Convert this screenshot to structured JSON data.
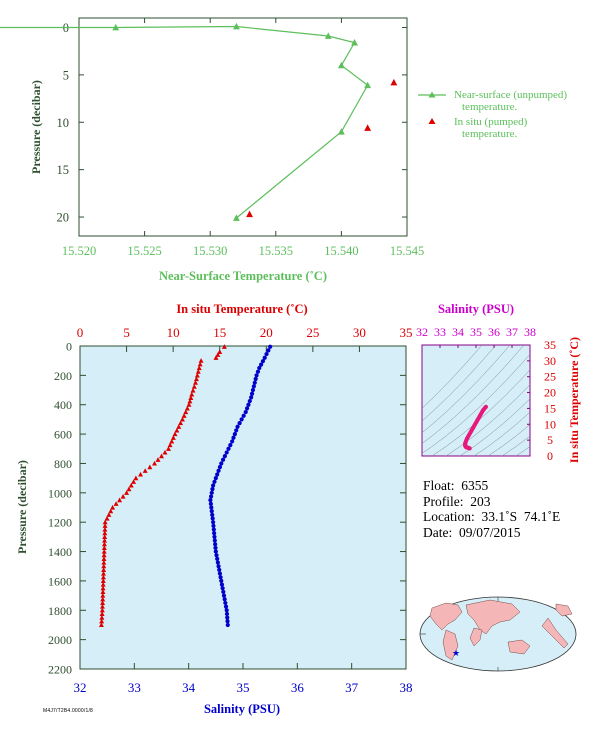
{
  "chart_data": [
    {
      "type": "line",
      "xlabel": "Near-Surface Temperature (˚C)",
      "ylabel": "Pressure (decibar)",
      "xlim": [
        15.52,
        15.545
      ],
      "ylim": [
        22,
        -1
      ],
      "x_ticks": [
        "15.520",
        "15.525",
        "15.530",
        "15.535",
        "15.540",
        "15.545"
      ],
      "y_ticks": [
        "0",
        "5",
        "10",
        "15",
        "20"
      ],
      "series": [
        {
          "name": "Near-surface (unpumped) temperature.",
          "color": "#5cbf5c",
          "marker": "triangle",
          "points": [
            [
              15.508,
              0.0
            ],
            [
              15.5228,
              0.0
            ],
            [
              15.532,
              -0.1
            ],
            [
              15.539,
              0.9
            ],
            [
              15.541,
              1.6
            ],
            [
              15.54,
              4.0
            ],
            [
              15.542,
              6.1
            ],
            [
              15.54,
              11.0
            ],
            [
              15.532,
              20.1
            ]
          ]
        },
        {
          "name": "In situ (pumped) temperature.",
          "color": "#dd0000",
          "marker": "triangle",
          "points": [
            [
              15.544,
              5.8
            ],
            [
              15.542,
              10.6
            ],
            [
              15.533,
              19.7
            ]
          ]
        }
      ]
    },
    {
      "type": "scatter",
      "xlabel": "Salinity (PSU)",
      "ylabel": "Pressure (decibar)",
      "ylim": [
        2200,
        0
      ],
      "xlim": [
        32,
        38
      ],
      "x_ticks": [
        "32",
        "33",
        "34",
        "35",
        "36",
        "37",
        "38"
      ],
      "y_ticks": [
        "0",
        "200",
        "400",
        "600",
        "800",
        "1000",
        "1200",
        "1400",
        "1600",
        "1800",
        "2000",
        "2200"
      ],
      "top_axis": {
        "label": "In situ Temperature (˚C)",
        "xlim": [
          0,
          35
        ],
        "ticks": [
          "0",
          "5",
          "10",
          "15",
          "20",
          "25",
          "30",
          "35"
        ]
      },
      "series": [
        {
          "axis": "temperature",
          "color": "#dd0000",
          "marker": "triangle",
          "profile": [
            [
              15.5,
              5
            ],
            [
              15.0,
              40
            ],
            [
              14.6,
              80
            ],
            [
              13.0,
              100
            ],
            [
              12.8,
              150
            ],
            [
              12.4,
              250
            ],
            [
              12.0,
              330
            ],
            [
              11.7,
              400
            ],
            [
              11.0,
              500
            ],
            [
              10.2,
              600
            ],
            [
              9.5,
              700
            ],
            [
              8.0,
              800
            ],
            [
              6.0,
              900
            ],
            [
              5.0,
              1000
            ],
            [
              3.5,
              1100
            ],
            [
              2.7,
              1200
            ],
            [
              2.6,
              1400
            ],
            [
              2.5,
              1600
            ],
            [
              2.4,
              1800
            ],
            [
              2.3,
              1900
            ]
          ]
        },
        {
          "axis": "salinity",
          "color": "#0000cc",
          "marker": "circle",
          "profile": [
            [
              35.5,
              5
            ],
            [
              35.4,
              80
            ],
            [
              35.3,
              150
            ],
            [
              35.25,
              200
            ],
            [
              35.15,
              350
            ],
            [
              35.05,
              450
            ],
            [
              34.9,
              550
            ],
            [
              34.8,
              650
            ],
            [
              34.6,
              800
            ],
            [
              34.45,
              950
            ],
            [
              34.4,
              1050
            ],
            [
              34.45,
              1200
            ],
            [
              34.5,
              1400
            ],
            [
              34.6,
              1600
            ],
            [
              34.7,
              1800
            ],
            [
              34.72,
              1900
            ]
          ]
        }
      ]
    },
    {
      "type": "scatter",
      "xlabel": "Salinity (PSU)",
      "ylabel": "In situ Temperature (˚C)",
      "xlim": [
        32,
        38
      ],
      "ylim": [
        0,
        35
      ],
      "x_ticks": [
        "32",
        "33",
        "34",
        "35",
        "36",
        "37",
        "38"
      ],
      "y_ticks": [
        "0",
        "5",
        "10",
        "15",
        "20",
        "25",
        "30",
        "35"
      ],
      "series": [
        {
          "color": "#e6197d",
          "marker": "circle",
          "points": [
            [
              35.55,
              15.5
            ],
            [
              35.4,
              14.5
            ],
            [
              35.25,
              13.0
            ],
            [
              35.1,
              11.5
            ],
            [
              34.95,
              10.0
            ],
            [
              34.8,
              8.5
            ],
            [
              34.65,
              7.0
            ],
            [
              34.5,
              5.5
            ],
            [
              34.4,
              4.0
            ],
            [
              34.4,
              3.2
            ],
            [
              34.45,
              2.8
            ],
            [
              34.55,
              2.6
            ],
            [
              34.65,
              2.4
            ]
          ]
        }
      ]
    }
  ],
  "info": {
    "float": "Float:  6355",
    "profile": "Profile:  203",
    "location": "Location:  33.1˚S  74.1˚E",
    "date": "Date:  09/07/2015"
  },
  "footnote": "M4J7/T2B4.0000/1/8"
}
